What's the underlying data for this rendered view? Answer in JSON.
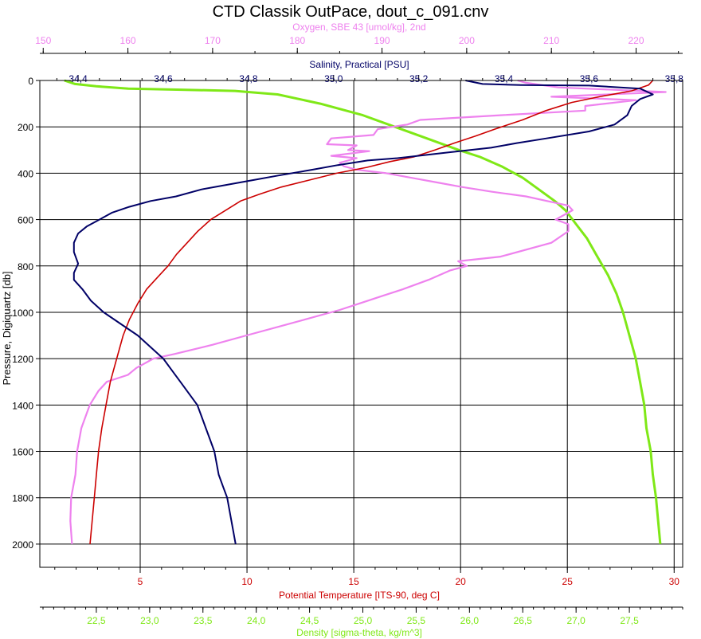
{
  "colors": {
    "oxygen": "#ee82ee",
    "salinity": "#000066",
    "temperature": "#cc0000",
    "density": "#7fe817",
    "grid": "#000000"
  },
  "chart_data": {
    "type": "line",
    "title": "CTD Classik OutPace, dout_c_091.cnv",
    "grid": true,
    "y_axis": {
      "label": "Pressure, Digiquartz [db]",
      "range": [
        2100,
        0
      ],
      "inverted": true,
      "ticks": [
        0,
        200,
        400,
        600,
        800,
        1000,
        1200,
        1400,
        1600,
        1800,
        2000
      ],
      "tick_labels": [
        "0",
        "200",
        "400",
        "600",
        "800",
        "1000",
        "1200",
        "1400",
        "1600",
        "1800",
        "2000"
      ]
    },
    "x_axes": {
      "oxygen": {
        "label": "Oxygen, SBE 43 [umol/kg], 2nd",
        "position": "top",
        "range": [
          149.6,
          225.5
        ],
        "ticks": [
          150,
          160,
          170,
          180,
          190,
          200,
          210,
          220
        ],
        "tick_labels": [
          "150",
          "160",
          "170",
          "180",
          "190",
          "200",
          "210",
          "220"
        ]
      },
      "salinity": {
        "label": "Salinity, Practical [PSU]",
        "position": "top",
        "range": [
          34.31,
          35.82
        ],
        "ticks": [
          34.4,
          34.6,
          34.8,
          35.0,
          35.2,
          35.4,
          35.6,
          35.8
        ],
        "tick_labels": [
          "34,4",
          "34,6",
          "34,8",
          "35,0",
          "35,2",
          "35,4",
          "35,6",
          "35,8"
        ]
      },
      "temperature": {
        "label": "Potential Temperature [ITS-90, deg C]",
        "position": "bottom",
        "range": [
          0.3,
          30.4
        ],
        "ticks": [
          5,
          10,
          15,
          20,
          25,
          30
        ],
        "tick_labels": [
          "5",
          "10",
          "15",
          "20",
          "25",
          "30"
        ]
      },
      "density": {
        "label": "Density [sigma-theta, kg/m^3]",
        "position": "bottom",
        "range": [
          21.97,
          28.0
        ],
        "ticks": [
          22.5,
          23.0,
          23.5,
          24.0,
          24.5,
          25.0,
          25.5,
          26.0,
          26.5,
          27.0,
          27.5
        ],
        "tick_labels": [
          "22,5",
          "23,0",
          "23,5",
          "24,0",
          "24,5",
          "25,0",
          "25,5",
          "26,0",
          "26,5",
          "27,0",
          "27,5"
        ]
      }
    },
    "series": [
      {
        "key": "oxygen",
        "axis": "oxygen",
        "points": [
          [
            206.0,
            0
          ],
          [
            207.0,
            10
          ],
          [
            210.8,
            30
          ],
          [
            223.5,
            50
          ],
          [
            210.0,
            70
          ],
          [
            220.0,
            85
          ],
          [
            214.0,
            110
          ],
          [
            214.0,
            130
          ],
          [
            204.0,
            150
          ],
          [
            194.5,
            170
          ],
          [
            193.0,
            190
          ],
          [
            189.5,
            210
          ],
          [
            189.0,
            235
          ],
          [
            184.0,
            250
          ],
          [
            183.5,
            275
          ],
          [
            187.0,
            280
          ],
          [
            186.0,
            300
          ],
          [
            188.5,
            305
          ],
          [
            184.0,
            325
          ],
          [
            187.0,
            335
          ],
          [
            185.0,
            355
          ],
          [
            185.5,
            370
          ],
          [
            187.0,
            385
          ],
          [
            190.5,
            400
          ],
          [
            193.5,
            420
          ],
          [
            196.5,
            440
          ],
          [
            199.5,
            460
          ],
          [
            203.0,
            480
          ],
          [
            207.0,
            500
          ],
          [
            209.5,
            520
          ],
          [
            212.0,
            540
          ],
          [
            212.5,
            560
          ],
          [
            210.5,
            600
          ],
          [
            212.0,
            620
          ],
          [
            212.0,
            650
          ],
          [
            210.0,
            700
          ],
          [
            204.0,
            760
          ],
          [
            199.0,
            780
          ],
          [
            200.0,
            800
          ],
          [
            198.0,
            820
          ],
          [
            195.5,
            860
          ],
          [
            192.5,
            900
          ],
          [
            190.0,
            930
          ],
          [
            187.5,
            960
          ],
          [
            185.0,
            990
          ],
          [
            181.0,
            1030
          ],
          [
            178.0,
            1060
          ],
          [
            174.0,
            1100
          ],
          [
            170.0,
            1140
          ],
          [
            165.5,
            1180
          ],
          [
            163.0,
            1200
          ],
          [
            161.0,
            1240
          ],
          [
            160.0,
            1270
          ],
          [
            157.5,
            1300
          ],
          [
            156.5,
            1340
          ],
          [
            155.5,
            1400
          ],
          [
            154.5,
            1500
          ],
          [
            154.0,
            1600
          ],
          [
            153.8,
            1700
          ],
          [
            153.3,
            1800
          ],
          [
            153.2,
            1900
          ],
          [
            153.4,
            2000
          ]
        ]
      },
      {
        "key": "salinity",
        "axis": "salinity",
        "points": [
          [
            35.31,
            0
          ],
          [
            35.35,
            15
          ],
          [
            35.44,
            20
          ],
          [
            35.6,
            22
          ],
          [
            35.72,
            35
          ],
          [
            35.75,
            60
          ],
          [
            35.72,
            80
          ],
          [
            35.7,
            110
          ],
          [
            35.69,
            150
          ],
          [
            35.66,
            190
          ],
          [
            35.6,
            220
          ],
          [
            35.5,
            250
          ],
          [
            35.43,
            270
          ],
          [
            35.37,
            290
          ],
          [
            35.27,
            310
          ],
          [
            35.15,
            335
          ],
          [
            35.08,
            345
          ],
          [
            35.01,
            365
          ],
          [
            34.95,
            385
          ],
          [
            34.87,
            410
          ],
          [
            34.81,
            430
          ],
          [
            34.75,
            450
          ],
          [
            34.69,
            470
          ],
          [
            34.63,
            500
          ],
          [
            34.57,
            520
          ],
          [
            34.52,
            545
          ],
          [
            34.48,
            570
          ],
          [
            34.45,
            600
          ],
          [
            34.42,
            630
          ],
          [
            34.4,
            660
          ],
          [
            34.39,
            700
          ],
          [
            34.39,
            740
          ],
          [
            34.4,
            790
          ],
          [
            34.39,
            830
          ],
          [
            34.39,
            860
          ],
          [
            34.41,
            900
          ],
          [
            34.43,
            950
          ],
          [
            34.46,
            1000
          ],
          [
            34.5,
            1050
          ],
          [
            34.54,
            1100
          ],
          [
            34.57,
            1150
          ],
          [
            34.6,
            1200
          ],
          [
            34.62,
            1250
          ],
          [
            34.64,
            1300
          ],
          [
            34.66,
            1350
          ],
          [
            34.68,
            1400
          ],
          [
            34.69,
            1450
          ],
          [
            34.7,
            1500
          ],
          [
            34.71,
            1550
          ],
          [
            34.72,
            1600
          ],
          [
            34.73,
            1700
          ],
          [
            34.74,
            1750
          ],
          [
            34.75,
            1800
          ],
          [
            34.76,
            1900
          ],
          [
            34.77,
            2000
          ]
        ]
      },
      {
        "key": "temperature",
        "axis": "temperature",
        "points": [
          [
            29.0,
            0
          ],
          [
            28.8,
            20
          ],
          [
            28.0,
            45
          ],
          [
            26.5,
            70
          ],
          [
            25.2,
            95
          ],
          [
            24.0,
            130
          ],
          [
            22.9,
            170
          ],
          [
            21.6,
            210
          ],
          [
            20.7,
            240
          ],
          [
            19.7,
            270
          ],
          [
            18.8,
            300
          ],
          [
            17.8,
            330
          ],
          [
            16.7,
            350
          ],
          [
            15.6,
            375
          ],
          [
            14.2,
            400
          ],
          [
            12.9,
            430
          ],
          [
            11.6,
            460
          ],
          [
            10.6,
            490
          ],
          [
            9.7,
            520
          ],
          [
            9.0,
            560
          ],
          [
            8.3,
            600
          ],
          [
            7.7,
            650
          ],
          [
            7.2,
            700
          ],
          [
            6.7,
            750
          ],
          [
            6.3,
            800
          ],
          [
            5.8,
            850
          ],
          [
            5.3,
            900
          ],
          [
            4.9,
            960
          ],
          [
            4.5,
            1030
          ],
          [
            4.2,
            1100
          ],
          [
            3.9,
            1200
          ],
          [
            3.6,
            1300
          ],
          [
            3.4,
            1400
          ],
          [
            3.2,
            1500
          ],
          [
            3.05,
            1600
          ],
          [
            2.95,
            1700
          ],
          [
            2.85,
            1800
          ],
          [
            2.75,
            1900
          ],
          [
            2.65,
            2000
          ]
        ]
      },
      {
        "key": "density",
        "axis": "density",
        "points": [
          [
            22.2,
            0
          ],
          [
            22.3,
            15
          ],
          [
            22.5,
            25
          ],
          [
            22.8,
            35
          ],
          [
            23.3,
            40
          ],
          [
            23.8,
            45
          ],
          [
            24.2,
            60
          ],
          [
            24.6,
            100
          ],
          [
            25.0,
            150
          ],
          [
            25.3,
            200
          ],
          [
            25.6,
            250
          ],
          [
            25.9,
            300
          ],
          [
            26.1,
            330
          ],
          [
            26.3,
            370
          ],
          [
            26.5,
            420
          ],
          [
            26.65,
            470
          ],
          [
            26.8,
            520
          ],
          [
            26.9,
            560
          ],
          [
            27.0,
            620
          ],
          [
            27.1,
            680
          ],
          [
            27.2,
            760
          ],
          [
            27.3,
            840
          ],
          [
            27.38,
            920
          ],
          [
            27.44,
            1000
          ],
          [
            27.5,
            1100
          ],
          [
            27.56,
            1200
          ],
          [
            27.6,
            1300
          ],
          [
            27.64,
            1400
          ],
          [
            27.66,
            1500
          ],
          [
            27.7,
            1600
          ],
          [
            27.72,
            1700
          ],
          [
            27.75,
            1800
          ],
          [
            27.77,
            1900
          ],
          [
            27.79,
            2000
          ]
        ]
      }
    ]
  }
}
